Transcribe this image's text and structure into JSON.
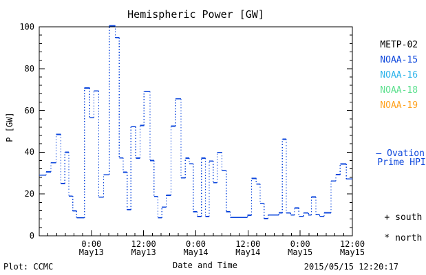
{
  "title": "Hemispheric Power [GW]",
  "axes": {
    "y_label": "P [GW]",
    "x_label": "Date and Time",
    "y_ticks": [
      0,
      20,
      40,
      60,
      80,
      100
    ],
    "x_ticks": [
      {
        "time": "0:00",
        "date": "May13"
      },
      {
        "time": "12:00",
        "date": "May13"
      },
      {
        "time": "0:00",
        "date": "May14"
      },
      {
        "time": "12:00",
        "date": "May14"
      },
      {
        "time": "0:00",
        "date": "May15"
      },
      {
        "time": "12:00",
        "date": "May15"
      }
    ]
  },
  "footer": {
    "credit": "Plot: CCMC",
    "timestamp": "2015/05/15 12:20:17"
  },
  "legend": {
    "satellites": [
      {
        "label": "METP-02",
        "color": "#000000"
      },
      {
        "label": "NOAA-15",
        "color": "#0d47dc"
      },
      {
        "label": "NOAA-16",
        "color": "#2bb3ea"
      },
      {
        "label": "NOAA-18",
        "color": "#5ce08e"
      },
      {
        "label": "NOAA-19",
        "color": "#ffa21f"
      }
    ],
    "model": {
      "sample": "—",
      "line1": "Ovation",
      "line2": "Prime HPI",
      "color": "#0d47dc"
    },
    "markers": [
      {
        "symbol": "+",
        "label": "south"
      },
      {
        "symbol": "*",
        "label": "north"
      }
    ]
  },
  "chart_data": {
    "type": "line",
    "subtype": "step",
    "style": "solid horizontal steps joined by dotted vertical connectors",
    "title": "Hemispheric Power [GW]",
    "xlabel": "Date and Time",
    "ylabel": "P [GW]",
    "line_color": "#0d47dc",
    "ylim": [
      0,
      100
    ],
    "y_major_step": 20,
    "y_minor_step": 4,
    "x_start": "2015-05-12 12:00",
    "x_domain_hours": [
      0,
      72
    ],
    "x_major_ticks_hours": [
      12,
      24,
      36,
      48,
      60,
      72
    ],
    "x_minor_step_hours": 2,
    "x_tick_labels": [
      "0:00 May13",
      "12:00 May13",
      "0:00 May14",
      "12:00 May14",
      "0:00 May15",
      "12:00 May15"
    ],
    "series_name": "Ovation Prime HPI",
    "steps_units": "[hours_since_2015-05-12T12:00, hemispheric_power_GW]",
    "steps": [
      [
        0,
        29
      ],
      [
        1.6,
        30.6
      ],
      [
        2.7,
        35
      ],
      [
        3.9,
        48.5
      ],
      [
        5,
        25
      ],
      [
        5.9,
        40
      ],
      [
        6.8,
        19
      ],
      [
        7.7,
        11.9
      ],
      [
        8.6,
        8.6
      ],
      [
        10.4,
        70.7
      ],
      [
        11.6,
        56.5
      ],
      [
        12.6,
        69.3
      ],
      [
        13.7,
        18.5
      ],
      [
        14.8,
        29.2
      ],
      [
        16.1,
        100.5
      ],
      [
        17.5,
        94.8
      ],
      [
        18.4,
        37.3
      ],
      [
        19.3,
        30.4
      ],
      [
        20.2,
        12.5
      ],
      [
        21.1,
        52.2
      ],
      [
        22.2,
        37.2
      ],
      [
        23.2,
        52.8
      ],
      [
        24.1,
        69
      ],
      [
        25.5,
        36
      ],
      [
        26.4,
        18.8
      ],
      [
        27.3,
        8.6
      ],
      [
        28.2,
        13.7
      ],
      [
        29.2,
        19.4
      ],
      [
        30.3,
        52.5
      ],
      [
        31.3,
        65.5
      ],
      [
        32.6,
        27.7
      ],
      [
        33.6,
        37.2
      ],
      [
        34.5,
        34.5
      ],
      [
        35.4,
        11.5
      ],
      [
        36.3,
        9.2
      ],
      [
        37.3,
        37.2
      ],
      [
        38.2,
        9.2
      ],
      [
        39.1,
        35.8
      ],
      [
        40,
        25.4
      ],
      [
        40.9,
        39.9
      ],
      [
        42,
        31.2
      ],
      [
        43,
        11.5
      ],
      [
        43.9,
        8.8
      ],
      [
        47.9,
        9.9
      ],
      [
        48.8,
        27.5
      ],
      [
        49.9,
        24.8
      ],
      [
        50.8,
        15.5
      ],
      [
        51.7,
        8.2
      ],
      [
        52.6,
        10
      ],
      [
        55.1,
        11
      ],
      [
        55.9,
        46.2
      ],
      [
        56.8,
        10.9
      ],
      [
        57.8,
        10
      ],
      [
        58.7,
        13.3
      ],
      [
        59.7,
        9.3
      ],
      [
        60.8,
        10.9
      ],
      [
        61.9,
        10
      ],
      [
        62.6,
        18.6
      ],
      [
        63.6,
        10.1
      ],
      [
        64.5,
        9.3
      ],
      [
        65.5,
        11
      ],
      [
        67.1,
        26.2
      ],
      [
        68.2,
        29.3
      ],
      [
        69.2,
        34.4
      ],
      [
        70.6,
        27.2
      ]
    ]
  }
}
